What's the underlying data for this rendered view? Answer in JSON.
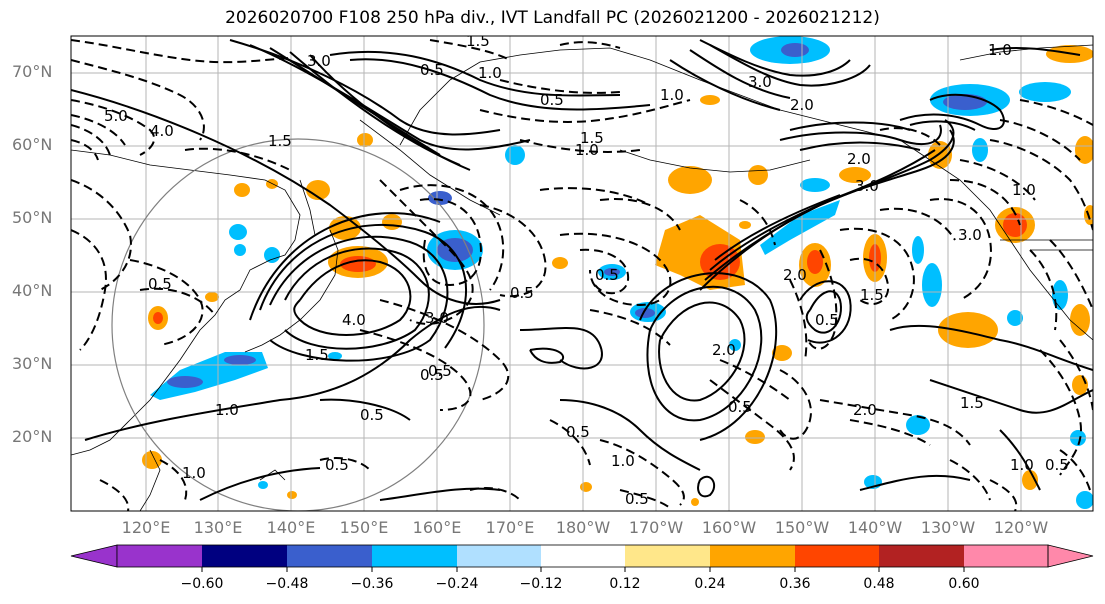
{
  "title": "2026020700 F108 250 hPa div., IVT Landfall PC (2026021200 - 2026021212)",
  "lat_labels": [
    "70°N",
    "60°N",
    "50°N",
    "40°N",
    "30°N",
    "20°N"
  ],
  "lon_labels": [
    "120°E",
    "130°E",
    "140°E",
    "150°E",
    "160°E",
    "170°E",
    "180°W",
    "170°W",
    "160°W",
    "150°W",
    "140°W",
    "130°W",
    "120°W"
  ],
  "colorbar": {
    "ticks": [
      "−0.60",
      "−0.48",
      "−0.36",
      "−0.24",
      "−0.12",
      "0.12",
      "0.24",
      "0.36",
      "0.48",
      "0.60"
    ],
    "colors": [
      "#9933cc",
      "#000080",
      "#3a5fcd",
      "#00bfff",
      "#b0e0ff",
      "#ffffff",
      "#ffe78a",
      "#ffa500",
      "#ff4500",
      "#b22222",
      "#ff88aa"
    ]
  },
  "contour_labels": [
    "1.5",
    "3.0",
    "1.0",
    "5.0",
    "4.0",
    "3.0",
    "2.0",
    "1.5",
    "0.5",
    "1.0",
    "0.5",
    "1.0",
    "2.0",
    "3.0",
    "1.0",
    "0.5",
    "1.5",
    "4.0",
    "3.0",
    "1.0",
    "0.5",
    "0.5",
    "0.5",
    "2.0",
    "1.5",
    "0.5",
    "1.0",
    "0.5",
    "0.5",
    "1.0",
    "0.5",
    "2.0",
    "1.5",
    "1.0",
    "0.5",
    "0.5",
    "0.5",
    "1.5",
    "2.0",
    "3.0",
    "1.0",
    "0.5"
  ]
}
